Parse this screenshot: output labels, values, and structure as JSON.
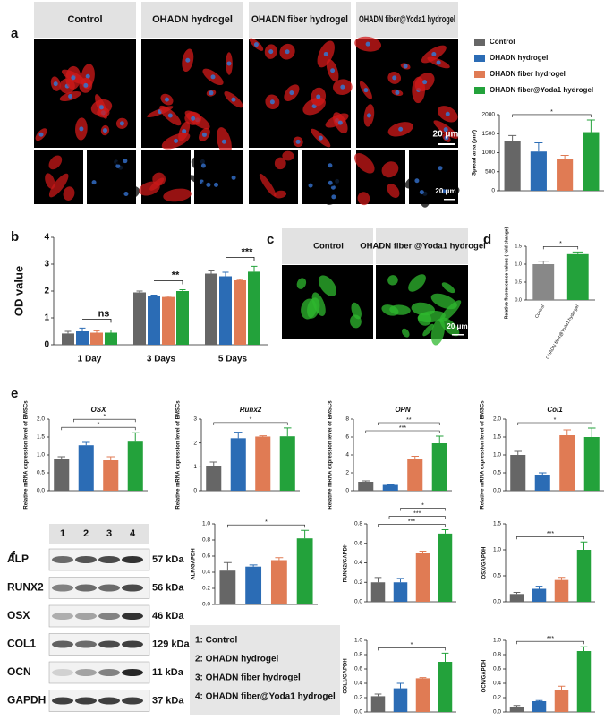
{
  "panel_letters": [
    "a",
    "b",
    "c",
    "d",
    "e",
    "f"
  ],
  "panel_a_images": {
    "labels": [
      "Control",
      "OHADN hydrogel",
      "OHADN fiber hydrogel",
      "OHADN fiber@Yoda1 hydrogel"
    ],
    "scale_bars": [
      "20 μm",
      "20 μm"
    ]
  },
  "legend": {
    "names": [
      "Control",
      "OHADN hydrogel",
      "OHADN fiber hydrogel",
      "OHADN fiber@Yoda1 hydrogel"
    ],
    "colors": [
      "#666666",
      "#2b6cb5",
      "#e07b54",
      "#23a23b"
    ]
  },
  "panel_c_images": {
    "labels": [
      "Control",
      "OHADN fiber @Yoda1 hydrogel"
    ],
    "scale_bar": "20 μm"
  },
  "blot": {
    "lanes": [
      "1",
      "2",
      "3",
      "4"
    ],
    "bands": [
      {
        "name": "ALP",
        "size": "57 kDa"
      },
      {
        "name": "RUNX2",
        "size": "56 kDa"
      },
      {
        "name": "OSX",
        "size": "46 kDa"
      },
      {
        "name": "COL1",
        "size": "129 kDa"
      },
      {
        "name": "OCN",
        "size": "11 kDa"
      },
      {
        "name": "GAPDH",
        "size": "37 kDa"
      }
    ],
    "key": [
      "1: Control",
      "2: OHADN hydrogel",
      "3: OHADN fiber hydrogel",
      "4: OHADN fiber@Yoda1 hydrogel"
    ]
  },
  "chart_data": [
    {
      "type": "bar",
      "ylabel": "Spread area (μm²)",
      "values": [
        1300,
        1030,
        830,
        1540
      ],
      "errors": [
        150,
        230,
        100,
        320
      ],
      "colors": [
        "#666666",
        "#2b6cb5",
        "#e07b54",
        "#23a23b"
      ],
      "ylim": [
        0,
        2000
      ],
      "yticks": [
        0,
        500,
        1000,
        1500,
        2000
      ],
      "annotations": [
        "*"
      ]
    },
    {
      "type": "bar",
      "ylabel": "OD value",
      "categories": [
        "1 Day",
        "3 Days",
        "5 Days"
      ],
      "series": [
        {
          "color": "#666666",
          "values": [
            0.42,
            1.95,
            2.65
          ],
          "errors": [
            0.08,
            0.05,
            0.1
          ]
        },
        {
          "color": "#2b6cb5",
          "values": [
            0.5,
            1.82,
            2.55
          ],
          "errors": [
            0.12,
            0.03,
            0.15
          ]
        },
        {
          "color": "#e07b54",
          "values": [
            0.45,
            1.78,
            2.4
          ],
          "errors": [
            0.07,
            0.03,
            0.03
          ]
        },
        {
          "color": "#23a23b",
          "values": [
            0.45,
            2.0,
            2.72
          ],
          "errors": [
            0.1,
            0.05,
            0.2
          ]
        }
      ],
      "ylim": [
        0,
        4
      ],
      "yticks": [
        0,
        1,
        2,
        3,
        4
      ],
      "annotations": [
        "ns",
        "**",
        "***"
      ]
    },
    {
      "type": "bar",
      "ylabel": "Relative fluorescence values ( fold change)",
      "categories": [
        "Control",
        "OHADN fiber@Yoda1 hydrogel"
      ],
      "values": [
        1.0,
        1.28
      ],
      "errors": [
        0.08,
        0.06
      ],
      "colors": [
        "#888888",
        "#23a23b"
      ],
      "ylim": [
        0,
        1.5
      ],
      "yticks": [
        {
          "value": 0,
          "label": "0.0"
        },
        0.5,
        {
          "value": 1,
          "label": "1.0"
        },
        1.5
      ],
      "annotations": [
        "*"
      ]
    },
    {
      "type": "bar",
      "title": "OSX",
      "ylabel": "Relative mRNA expression level of BMSCs",
      "values": [
        0.9,
        1.27,
        0.85,
        1.37
      ],
      "errors": [
        0.05,
        0.08,
        0.1,
        0.25
      ],
      "colors": [
        "#666666",
        "#2b6cb5",
        "#e07b54",
        "#23a23b"
      ],
      "ylim": [
        0,
        2
      ],
      "yticks": [
        {
          "value": 0,
          "label": "0.0"
        },
        0.5,
        {
          "value": 1,
          "label": "1.0"
        },
        1.5,
        {
          "value": 2,
          "label": "2.0"
        }
      ],
      "annotations": [
        "*",
        "*"
      ]
    },
    {
      "type": "bar",
      "title": "Runx2",
      "ylabel": "Relative mRNA expression level of BMSCs",
      "values": [
        1.05,
        2.2,
        2.27,
        2.28
      ],
      "errors": [
        0.15,
        0.25,
        0.03,
        0.35
      ],
      "colors": [
        "#666666",
        "#2b6cb5",
        "#e07b54",
        "#23a23b"
      ],
      "ylim": [
        0,
        3
      ],
      "yticks": [
        0,
        1,
        2,
        3
      ],
      "annotations": [
        "*"
      ]
    },
    {
      "type": "bar",
      "title": "OPN",
      "ylabel": "Relative mRNA expression level of BMSCs",
      "values": [
        1.0,
        0.65,
        3.55,
        5.3
      ],
      "errors": [
        0.1,
        0.05,
        0.3,
        0.8
      ],
      "colors": [
        "#666666",
        "#2b6cb5",
        "#e07b54",
        "#23a23b"
      ],
      "ylim": [
        0,
        8
      ],
      "yticks": [
        0,
        2,
        4,
        6,
        8
      ],
      "annotations": [
        "***",
        "**"
      ]
    },
    {
      "type": "bar",
      "title": "Col1",
      "ylabel": "Relative mRNA expression level of BMSCs",
      "values": [
        1.0,
        0.45,
        1.55,
        1.5
      ],
      "errors": [
        0.1,
        0.05,
        0.15,
        0.25
      ],
      "colors": [
        "#666666",
        "#2b6cb5",
        "#e07b54",
        "#23a23b"
      ],
      "ylim": [
        0,
        2
      ],
      "yticks": [
        {
          "value": 0,
          "label": "0.0"
        },
        0.5,
        {
          "value": 1,
          "label": "1.0"
        },
        1.5,
        {
          "value": 2,
          "label": "2.0"
        }
      ],
      "annotations": [
        "*"
      ]
    },
    {
      "type": "bar",
      "ylabel": "ALP/GAPDH",
      "values": [
        0.42,
        0.47,
        0.55,
        0.82
      ],
      "errors": [
        0.1,
        0.02,
        0.03,
        0.1
      ],
      "colors": [
        "#666666",
        "#2b6cb5",
        "#e07b54",
        "#23a23b"
      ],
      "ylim": [
        0,
        1
      ],
      "yticks": [
        {
          "value": 0,
          "label": "0.0"
        },
        0.2,
        0.4,
        0.6,
        0.8,
        {
          "value": 1,
          "label": "1.0"
        }
      ],
      "annotations": [
        "*"
      ]
    },
    {
      "type": "bar",
      "ylabel": "RUNX2/GAPDH",
      "values": [
        0.2,
        0.2,
        0.5,
        0.7
      ],
      "errors": [
        0.05,
        0.04,
        0.02,
        0.04
      ],
      "colors": [
        "#666666",
        "#2b6cb5",
        "#e07b54",
        "#23a23b"
      ],
      "ylim": [
        0,
        0.8
      ],
      "yticks": [
        {
          "value": 0,
          "label": "0.0"
        },
        0.2,
        0.4,
        0.6,
        0.8
      ],
      "annotations": [
        "***",
        "***",
        "*"
      ]
    },
    {
      "type": "bar",
      "ylabel": "OSX/GAPDH",
      "values": [
        0.15,
        0.25,
        0.42,
        1.0
      ],
      "errors": [
        0.03,
        0.05,
        0.05,
        0.15
      ],
      "colors": [
        "#666666",
        "#2b6cb5",
        "#e07b54",
        "#23a23b"
      ],
      "ylim": [
        0,
        1.5
      ],
      "yticks": [
        {
          "value": 0,
          "label": "0.0"
        },
        0.5,
        {
          "value": 1,
          "label": "1.0"
        },
        1.5
      ],
      "annotations": [
        "***"
      ]
    },
    {
      "type": "bar",
      "ylabel": "COL1/GAPDH",
      "values": [
        0.22,
        0.33,
        0.47,
        0.7
      ],
      "errors": [
        0.03,
        0.07,
        0.01,
        0.12
      ],
      "colors": [
        "#666666",
        "#2b6cb5",
        "#e07b54",
        "#23a23b"
      ],
      "ylim": [
        0,
        1
      ],
      "yticks": [
        {
          "value": 0,
          "label": "0.0"
        },
        0.2,
        0.4,
        0.6,
        0.8,
        {
          "value": 1,
          "label": "1.0"
        }
      ],
      "annotations": [
        "*"
      ]
    },
    {
      "type": "bar",
      "ylabel": "OCN/GAPDH",
      "values": [
        0.07,
        0.15,
        0.3,
        0.85
      ],
      "errors": [
        0.02,
        0.01,
        0.06,
        0.06
      ],
      "colors": [
        "#666666",
        "#2b6cb5",
        "#e07b54",
        "#23a23b"
      ],
      "ylim": [
        0,
        1
      ],
      "yticks": [
        {
          "value": 0,
          "label": "0.0"
        },
        0.2,
        0.4,
        0.6,
        0.8,
        {
          "value": 1,
          "label": "1.0"
        }
      ],
      "annotations": [
        "***"
      ]
    }
  ]
}
